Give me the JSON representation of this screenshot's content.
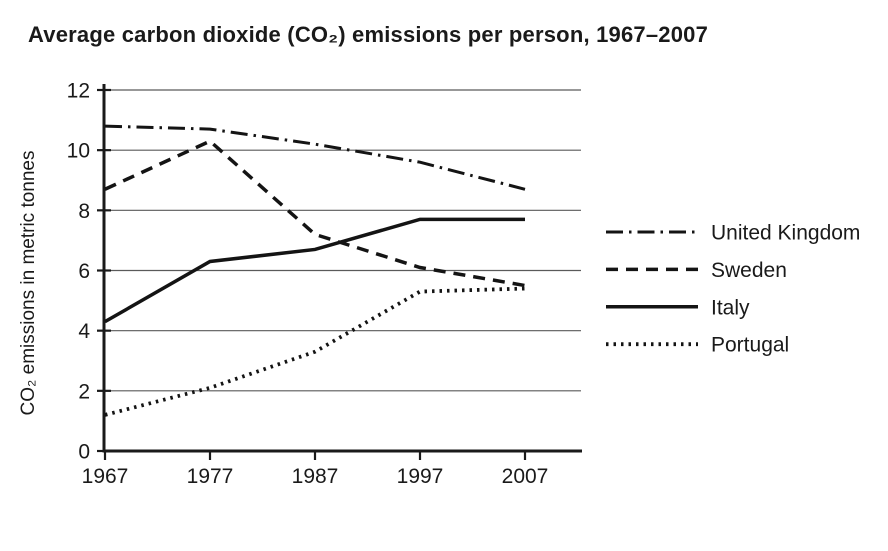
{
  "chart_data": {
    "type": "line",
    "title": "Average carbon dioxide (CO₂) emissions per person, 1967–2007",
    "xlabel": "",
    "ylabel": "CO₂ emissions in metric tonnes",
    "x": [
      1967,
      1977,
      1987,
      1997,
      2007
    ],
    "x_tick_labels": [
      "1967",
      "1977",
      "1987",
      "1997",
      "2007"
    ],
    "y_ticks": [
      0,
      2,
      4,
      6,
      8,
      10,
      12
    ],
    "y_tick_labels": [
      "0",
      "2",
      "4",
      "6",
      "8",
      "10",
      "12"
    ],
    "ylim": [
      0,
      12
    ],
    "grid": true,
    "legend_position": "right",
    "line_color": "#141414",
    "grid_color": "#5a5a5a",
    "axis_color": "#1a1a1a",
    "series": [
      {
        "name": "United Kingdom",
        "line_style": "dash-dot",
        "values": [
          10.8,
          10.7,
          10.2,
          9.6,
          8.7
        ]
      },
      {
        "name": "Sweden",
        "line_style": "dashed",
        "values": [
          8.7,
          10.3,
          7.2,
          6.1,
          5.5
        ]
      },
      {
        "name": "Italy",
        "line_style": "solid",
        "values": [
          4.3,
          6.3,
          6.7,
          7.7,
          7.7
        ]
      },
      {
        "name": "Portugal",
        "line_style": "dotted",
        "values": [
          1.2,
          2.1,
          3.3,
          5.3,
          5.4
        ]
      }
    ]
  }
}
